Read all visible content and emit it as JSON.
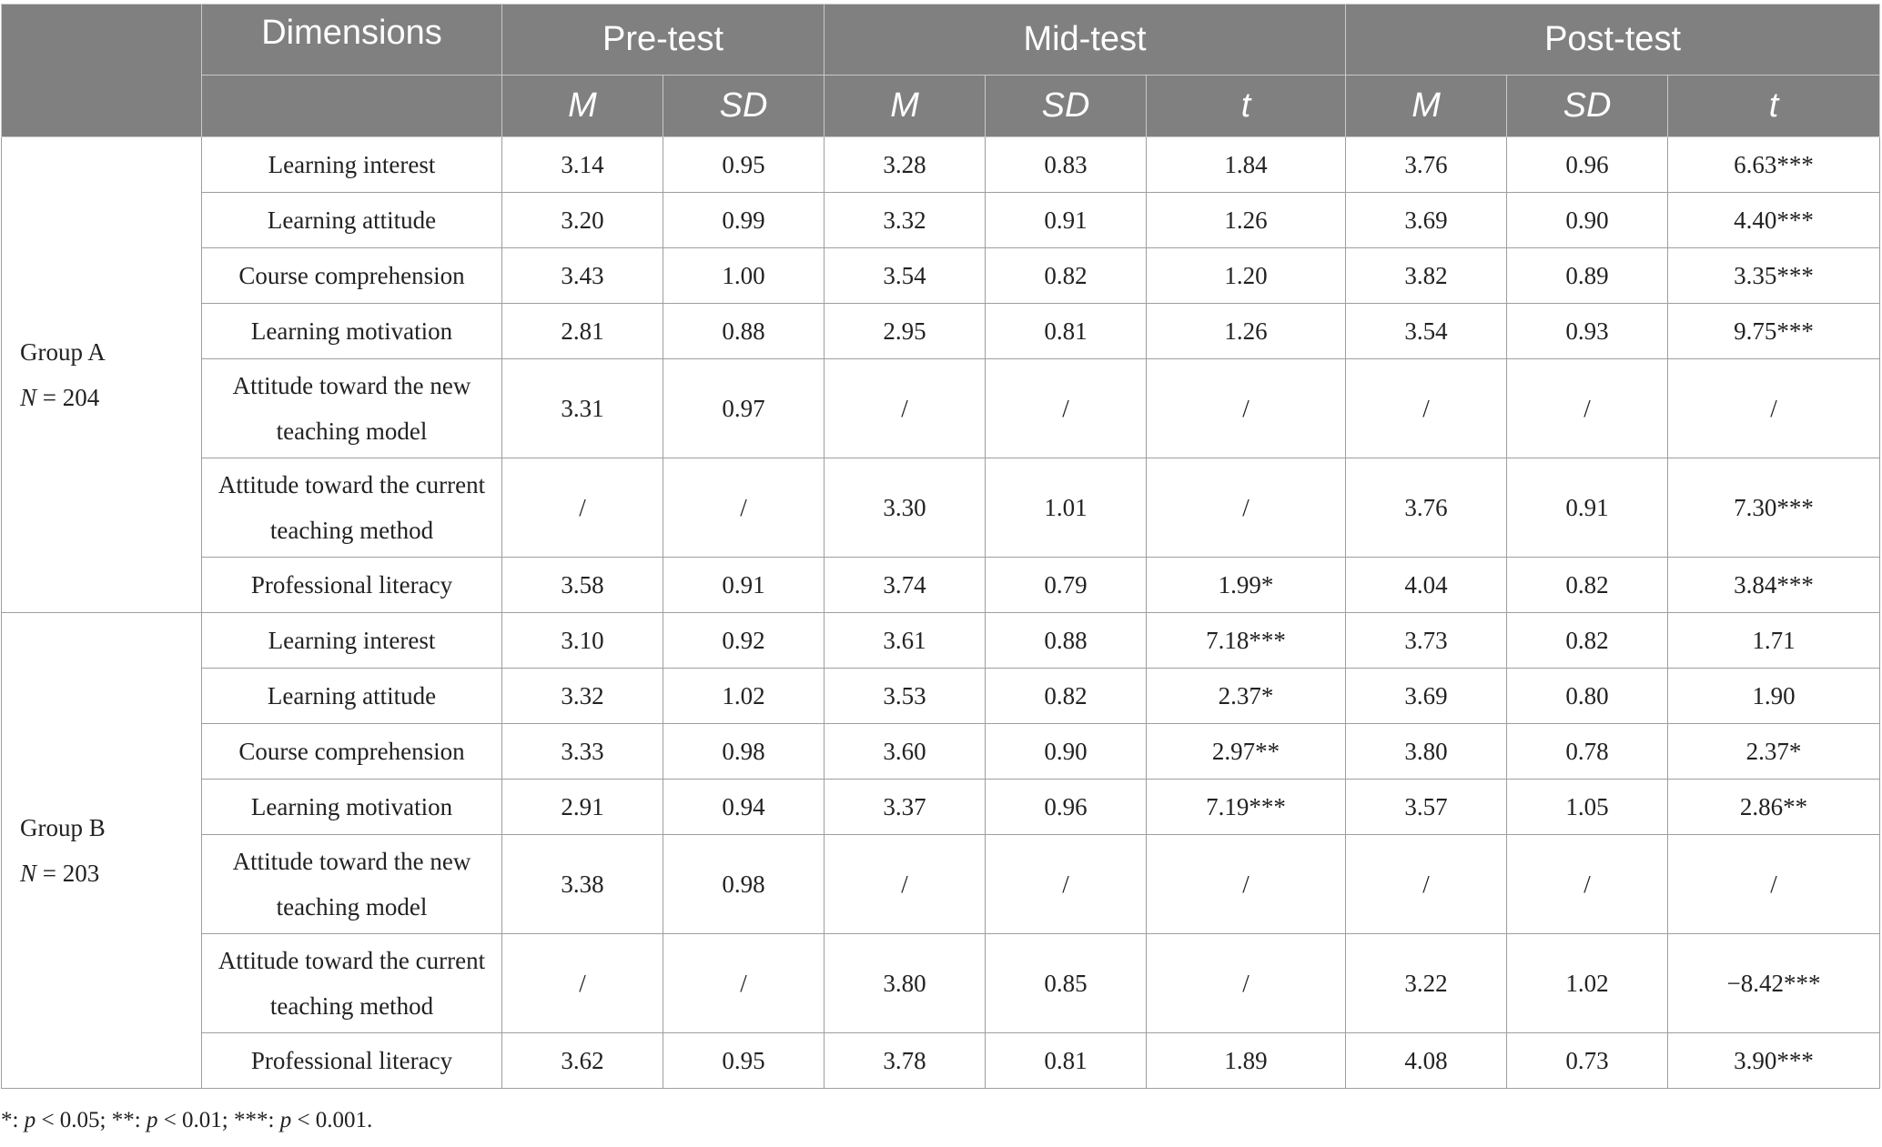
{
  "header": {
    "dimensions": "Dimensions",
    "pre_test": "Pre-test",
    "mid_test": "Mid-test",
    "post_test": "Post-test",
    "sub": [
      "M",
      "SD",
      "M",
      "SD",
      "t",
      "M",
      "SD",
      "t"
    ]
  },
  "groups": [
    {
      "label": "Group A",
      "n_label": "N = 204",
      "rows": [
        {
          "dim": "Learning interest",
          "vals": [
            "3.14",
            "0.95",
            "3.28",
            "0.83",
            "1.84",
            "3.76",
            "0.96",
            "6.63***"
          ]
        },
        {
          "dim": "Learning attitude",
          "vals": [
            "3.20",
            "0.99",
            "3.32",
            "0.91",
            "1.26",
            "3.69",
            "0.90",
            "4.40***"
          ]
        },
        {
          "dim": "Course comprehension",
          "vals": [
            "3.43",
            "1.00",
            "3.54",
            "0.82",
            "1.20",
            "3.82",
            "0.89",
            "3.35***"
          ]
        },
        {
          "dim": "Learning motivation",
          "vals": [
            "2.81",
            "0.88",
            "2.95",
            "0.81",
            "1.26",
            "3.54",
            "0.93",
            "9.75***"
          ]
        },
        {
          "dim": "Attitude toward the new teaching model",
          "vals": [
            "3.31",
            "0.97",
            "/",
            "/",
            "/",
            "/",
            "/",
            "/"
          ]
        },
        {
          "dim": "Attitude toward the current teaching method",
          "vals": [
            "/",
            "/",
            "3.30",
            "1.01",
            "/",
            "3.76",
            "0.91",
            "7.30***"
          ]
        },
        {
          "dim": "Professional literacy",
          "vals": [
            "3.58",
            "0.91",
            "3.74",
            "0.79",
            "1.99*",
            "4.04",
            "0.82",
            "3.84***"
          ]
        }
      ]
    },
    {
      "label": "Group B",
      "n_label": "N = 203",
      "rows": [
        {
          "dim": "Learning interest",
          "vals": [
            "3.10",
            "0.92",
            "3.61",
            "0.88",
            "7.18***",
            "3.73",
            "0.82",
            "1.71"
          ]
        },
        {
          "dim": "Learning attitude",
          "vals": [
            "3.32",
            "1.02",
            "3.53",
            "0.82",
            "2.37*",
            "3.69",
            "0.80",
            "1.90"
          ]
        },
        {
          "dim": "Course comprehension",
          "vals": [
            "3.33",
            "0.98",
            "3.60",
            "0.90",
            "2.97**",
            "3.80",
            "0.78",
            "2.37*"
          ]
        },
        {
          "dim": "Learning motivation",
          "vals": [
            "2.91",
            "0.94",
            "3.37",
            "0.96",
            "7.19***",
            "3.57",
            "1.05",
            "2.86**"
          ]
        },
        {
          "dim": "Attitude toward the new teaching model",
          "vals": [
            "3.38",
            "0.98",
            "/",
            "/",
            "/",
            "/",
            "/",
            "/"
          ]
        },
        {
          "dim": "Attitude toward the current teaching method",
          "vals": [
            "/",
            "/",
            "3.80",
            "0.85",
            "/",
            "3.22",
            "1.02",
            "−8.42***"
          ]
        },
        {
          "dim": "Professional literacy",
          "vals": [
            "3.62",
            "0.95",
            "3.78",
            "0.81",
            "1.89",
            "4.08",
            "0.73",
            "3.90***"
          ]
        }
      ]
    }
  ],
  "footnote": "*: p < 0.05; **: p < 0.01; ***: p < 0.001."
}
